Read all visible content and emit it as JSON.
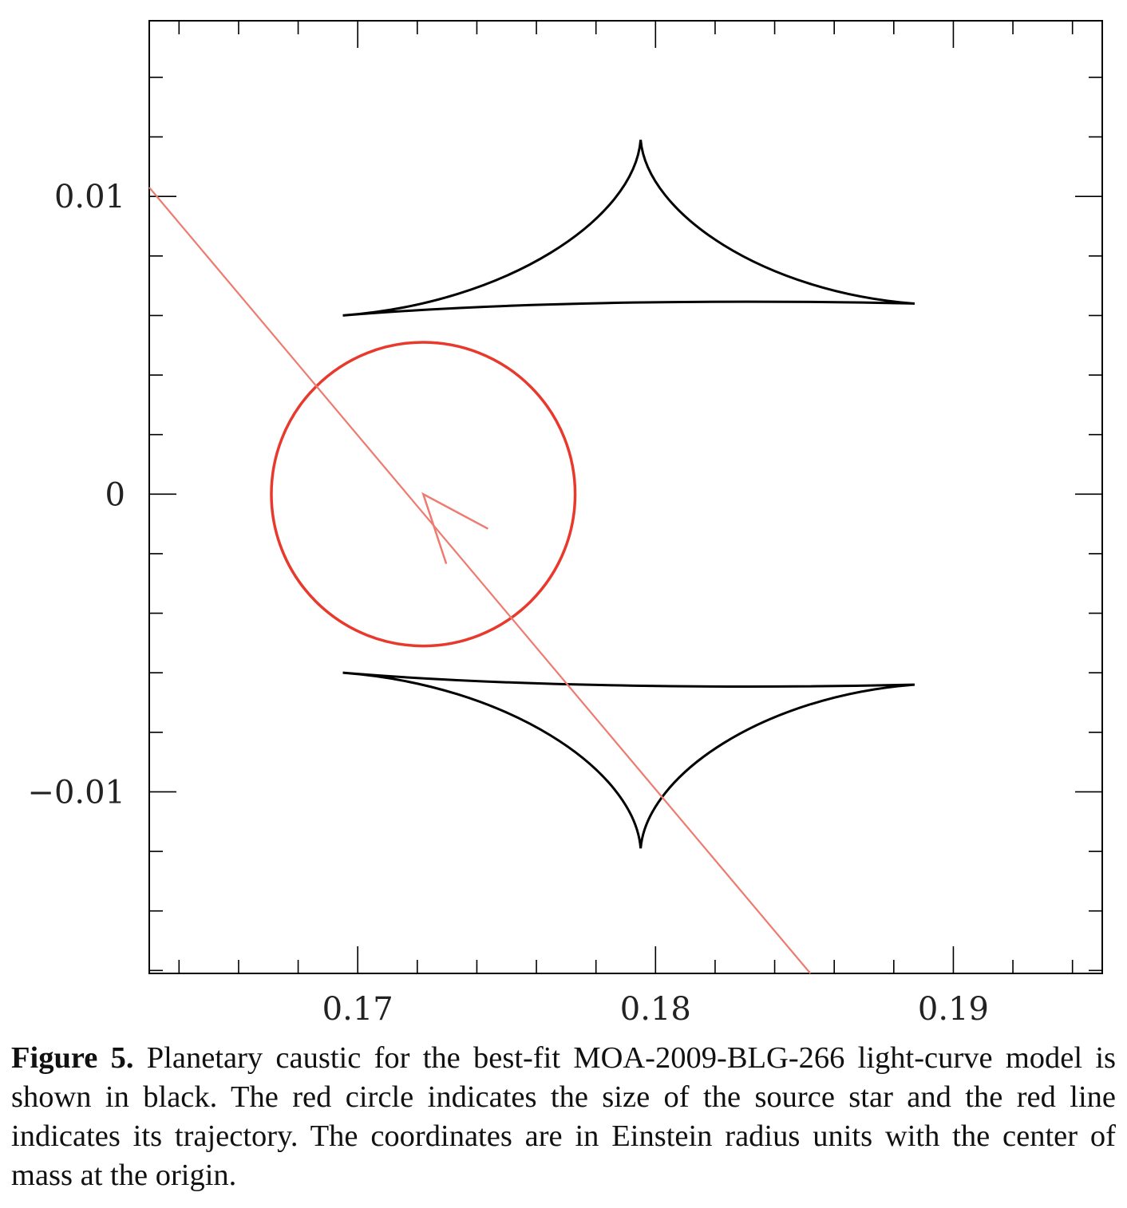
{
  "chart_data": {
    "type": "line",
    "title": "",
    "xlabel": "",
    "ylabel": "",
    "xlim": [
      0.163,
      0.195
    ],
    "ylim": [
      -0.0161,
      0.0159
    ],
    "x_ticks": [
      {
        "value": 0.17,
        "label": "0.17"
      },
      {
        "value": 0.18,
        "label": "0.18"
      },
      {
        "value": 0.19,
        "label": "0.19"
      }
    ],
    "y_ticks": [
      {
        "value": 0.01,
        "label": "0.01"
      },
      {
        "value": 0,
        "label": "0"
      },
      {
        "value": -0.01,
        "label": "−0.01"
      }
    ],
    "x_minor_step": 0.002,
    "y_minor_step": 0.002,
    "grid": false,
    "caustic_color": "#000000",
    "source_color": "#e8392c",
    "trajectory_color": "#ee7a70",
    "caustic": {
      "upper": {
        "left_cusp": [
          0.1695,
          0.006
        ],
        "top_cusp": [
          0.1795,
          0.0119
        ],
        "right_cusp": [
          0.1887,
          0.0064
        ],
        "bottom_edge_mid": [
          0.1795,
          0.0065
        ]
      },
      "lower": {
        "left_cusp": [
          0.1695,
          -0.006
        ],
        "bottom_cusp": [
          0.1795,
          -0.0119
        ],
        "right_cusp": [
          0.1887,
          -0.0064
        ],
        "top_edge_mid": [
          0.1795,
          -0.0065
        ]
      }
    },
    "source": {
      "center": [
        0.1722,
        0.0
      ],
      "radius": 0.0051
    },
    "trajectory": {
      "start": [
        0.163,
        0.0103
      ],
      "end": [
        0.1852,
        -0.0161
      ],
      "arrow_at": [
        0.1722,
        0.0
      ]
    }
  },
  "caption": {
    "label": "Figure 5.",
    "text": "Planetary caustic for the best-fit MOA-2009-BLG-266 light-curve model is shown in black. The red circle indicates the size of the source star and the red line indicates its trajectory. The coordinates are in Einstein radius units with the center of mass at the origin."
  }
}
